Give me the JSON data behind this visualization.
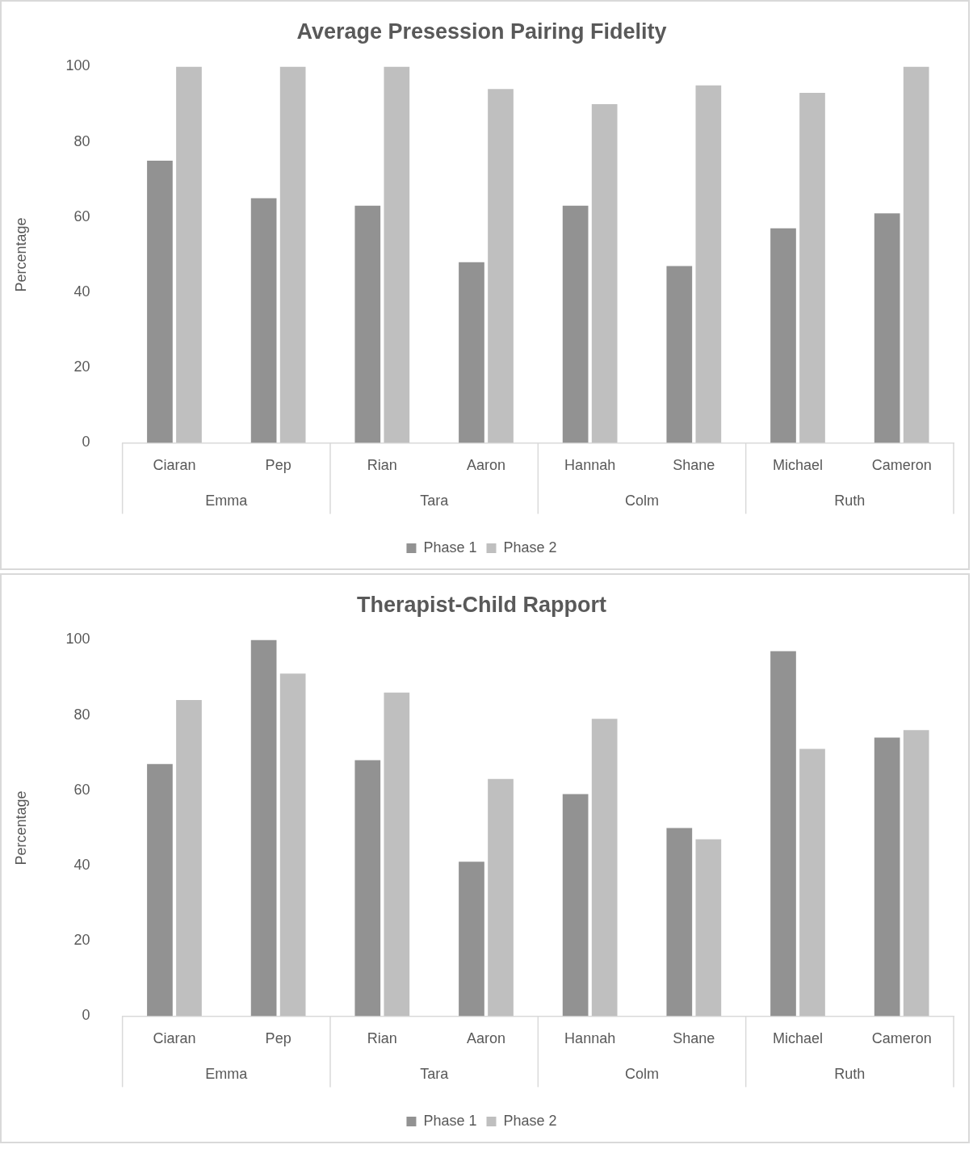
{
  "chart_data": [
    {
      "type": "bar",
      "title": "Average Presession Pairing Fidelity",
      "ylabel": "Percentage",
      "categories": [
        "Ciaran",
        "Pep",
        "Rian",
        "Aaron",
        "Hannah",
        "Shane",
        "Michael",
        "Cameron"
      ],
      "annotations": [
        "Emma",
        "Tara",
        "Colm",
        "Ruth"
      ],
      "series": [
        {
          "name": "Phase 1",
          "color": "#929292",
          "values": [
            75,
            65,
            63,
            48,
            63,
            47,
            57,
            61
          ]
        },
        {
          "name": "Phase 2",
          "color": "#bfbfbf",
          "values": [
            100,
            100,
            100,
            94,
            90,
            95,
            93,
            100
          ]
        }
      ],
      "ylim": [
        0,
        100
      ],
      "yticks": [
        0,
        20,
        40,
        60,
        80,
        100
      ],
      "grid": false,
      "legend": "bottom"
    },
    {
      "type": "bar",
      "title": "Therapist-Child Rapport",
      "ylabel": "Percentage",
      "categories": [
        "Ciaran",
        "Pep",
        "Rian",
        "Aaron",
        "Hannah",
        "Shane",
        "Michael",
        "Cameron"
      ],
      "annotations": [
        "Emma",
        "Tara",
        "Colm",
        "Ruth"
      ],
      "series": [
        {
          "name": "Phase 1",
          "color": "#929292",
          "values": [
            67,
            100,
            68,
            41,
            59,
            50,
            97,
            74
          ]
        },
        {
          "name": "Phase 2",
          "color": "#bfbfbf",
          "values": [
            84,
            91,
            86,
            63,
            79,
            47,
            71,
            76
          ]
        }
      ],
      "ylim": [
        0,
        100
      ],
      "yticks": [
        0,
        20,
        40,
        60,
        80,
        100
      ],
      "grid": false,
      "legend": "bottom"
    }
  ]
}
